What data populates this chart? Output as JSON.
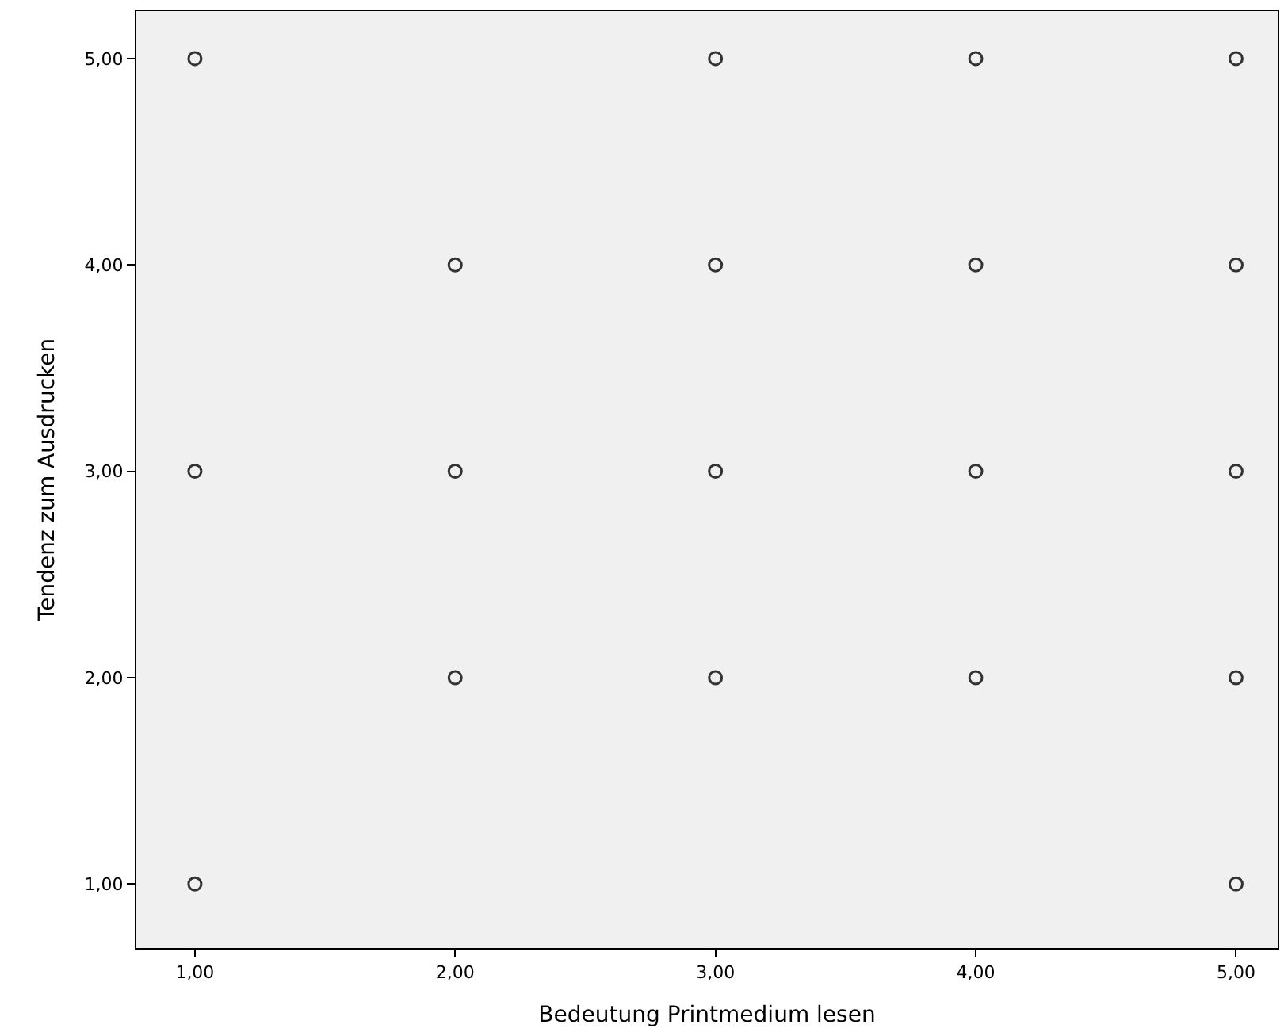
{
  "chart_data": {
    "type": "scatter",
    "xlabel": "Bedeutung Printmedium lesen",
    "ylabel": "Tendenz zum Ausdrucken",
    "x": [
      1,
      1,
      1,
      2,
      2,
      2,
      3,
      3,
      3,
      3,
      4,
      4,
      4,
      4,
      5,
      5,
      5,
      5,
      5
    ],
    "values": [
      5,
      3,
      1,
      4,
      3,
      2,
      5,
      4,
      3,
      2,
      5,
      4,
      3,
      2,
      5,
      4,
      3,
      2,
      1
    ],
    "color": "#333333",
    "marker": "circle",
    "grid": false,
    "legend": false,
    "xlim": [
      0.775,
      5.16
    ],
    "ylim": [
      0.69,
      5.23
    ],
    "xticks": [
      {
        "value": 1,
        "label": "1,00"
      },
      {
        "value": 2,
        "label": "2,00"
      },
      {
        "value": 3,
        "label": "3,00"
      },
      {
        "value": 4,
        "label": "4,00"
      },
      {
        "value": 5,
        "label": "5,00"
      }
    ],
    "yticks": [
      {
        "value": 1,
        "label": "1,00"
      },
      {
        "value": 2,
        "label": "2,00"
      },
      {
        "value": 3,
        "label": "3,00"
      },
      {
        "value": 4,
        "label": "4,00"
      },
      {
        "value": 5,
        "label": "5,00"
      }
    ]
  }
}
